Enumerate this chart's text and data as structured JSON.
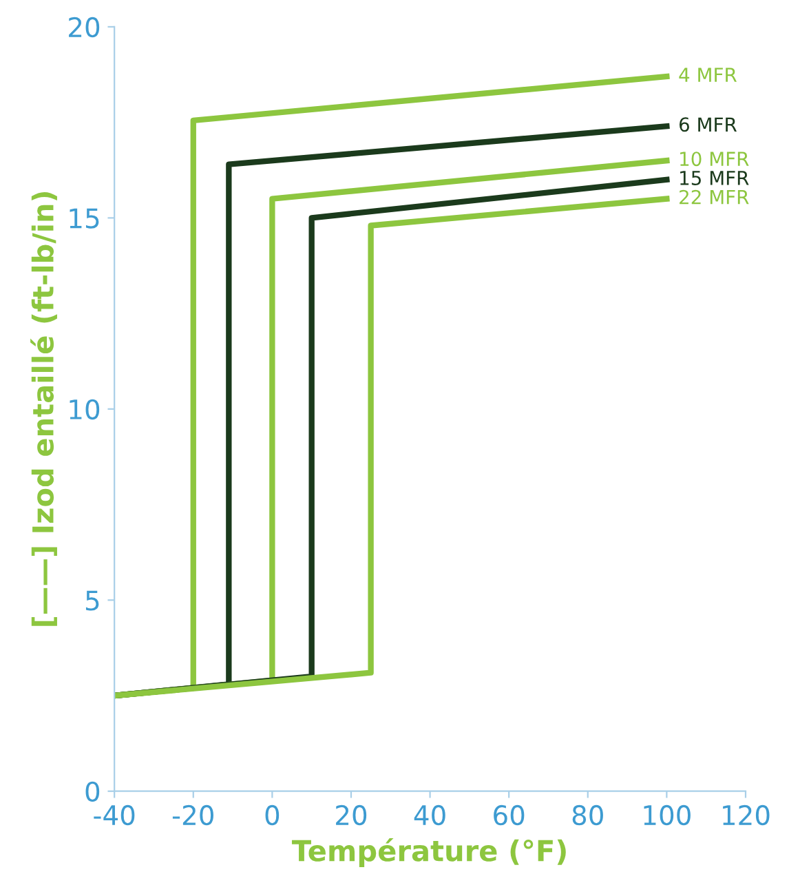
{
  "chart_data": {
    "type": "line",
    "xlabel": "Température (°F)",
    "ylabel": "[——] Izod entaillé (ft-lb/in)",
    "xlim": [
      -40,
      120
    ],
    "ylim": [
      0,
      20
    ],
    "xticks": [
      -40,
      -20,
      0,
      20,
      40,
      60,
      80,
      100,
      120
    ],
    "yticks": [
      0,
      5,
      10,
      15,
      20
    ],
    "grid": false,
    "legend": false,
    "marker": "none",
    "line_style": "solid",
    "series": [
      {
        "name": "4 MFR",
        "color": "#8dc63f",
        "x": [
          -40,
          -20,
          -20,
          100
        ],
        "values": [
          2.5,
          2.7,
          17.55,
          18.7
        ]
      },
      {
        "name": "6 MFR",
        "color": "#1b3a1c",
        "x": [
          -40,
          -11,
          -11,
          100
        ],
        "values": [
          2.5,
          2.8,
          16.4,
          17.4
        ]
      },
      {
        "name": "10 MFR",
        "color": "#8dc63f",
        "x": [
          -40,
          0,
          0,
          100
        ],
        "values": [
          2.5,
          2.9,
          15.5,
          16.5
        ]
      },
      {
        "name": "15 MFR",
        "color": "#1b3a1c",
        "x": [
          -40,
          10,
          10,
          100
        ],
        "values": [
          2.5,
          3.0,
          15.0,
          16.0
        ]
      },
      {
        "name": "22 MFR",
        "color": "#8dc63f",
        "x": [
          -40,
          25,
          25,
          100
        ],
        "values": [
          2.5,
          3.1,
          14.8,
          15.5
        ]
      }
    ]
  }
}
